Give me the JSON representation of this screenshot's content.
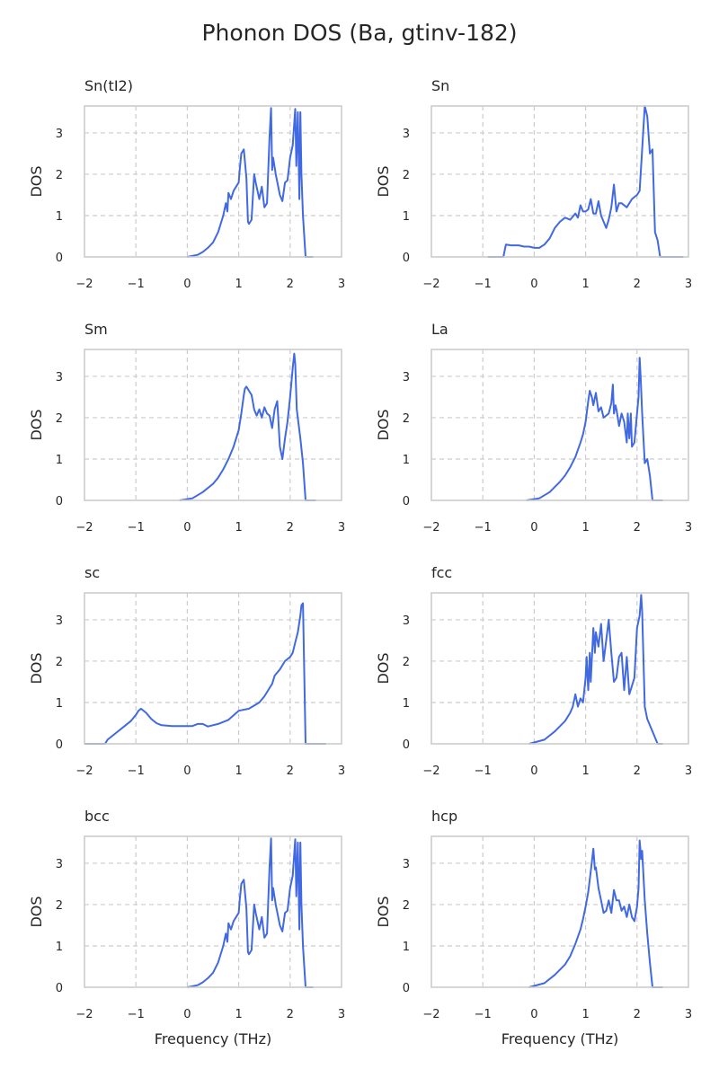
{
  "chart_data": {
    "type": "line",
    "title": "Phonon DOS (Ba, gtinv-182)",
    "xlabel": "Frequency (THz)",
    "ylabel": "DOS",
    "xlim": [
      -2,
      3
    ],
    "ylim": [
      0,
      3.65
    ],
    "xticks": [
      -2,
      -1,
      0,
      1,
      2,
      3
    ],
    "xtick_labels": [
      "−2",
      "−1",
      "0",
      "1",
      "2",
      "3"
    ],
    "yticks": [
      0,
      1,
      2,
      3
    ],
    "ytick_labels": [
      "0",
      "1",
      "2",
      "3"
    ],
    "grid": true,
    "line_color": "#4169e1",
    "panels": [
      {
        "title": "Sn(tI2)",
        "x": [
          0.0,
          0.2,
          0.3,
          0.4,
          0.5,
          0.6,
          0.7,
          0.75,
          0.78,
          0.8,
          0.85,
          0.9,
          0.95,
          1.0,
          1.02,
          1.05,
          1.1,
          1.15,
          1.18,
          1.2,
          1.25,
          1.3,
          1.33,
          1.4,
          1.45,
          1.5,
          1.55,
          1.6,
          1.63,
          1.65,
          1.67,
          1.72,
          1.8,
          1.85,
          1.9,
          1.95,
          2.0,
          2.05,
          2.1,
          2.12,
          2.15,
          2.18,
          2.2,
          2.22,
          2.25,
          2.3,
          2.35,
          2.45
        ],
        "y": [
          0.0,
          0.05,
          0.12,
          0.22,
          0.35,
          0.6,
          1.0,
          1.3,
          1.1,
          1.55,
          1.4,
          1.6,
          1.7,
          1.8,
          2.1,
          2.5,
          2.6,
          1.9,
          0.85,
          0.8,
          0.9,
          2.0,
          1.8,
          1.4,
          1.7,
          1.2,
          1.3,
          2.9,
          3.6,
          2.1,
          2.4,
          2.0,
          1.5,
          1.35,
          1.8,
          1.85,
          2.4,
          2.7,
          3.58,
          2.2,
          3.5,
          1.4,
          3.5,
          2.0,
          1.0,
          0.0,
          0.0,
          0.0
        ]
      },
      {
        "title": "Sn",
        "x": [
          -0.9,
          -0.6,
          -0.55,
          -0.45,
          -0.3,
          -0.2,
          -0.1,
          0.0,
          0.1,
          0.2,
          0.3,
          0.4,
          0.5,
          0.6,
          0.7,
          0.8,
          0.85,
          0.9,
          0.95,
          1.0,
          1.05,
          1.1,
          1.15,
          1.2,
          1.25,
          1.3,
          1.4,
          1.45,
          1.5,
          1.55,
          1.6,
          1.65,
          1.7,
          1.8,
          1.9,
          2.0,
          2.05,
          2.1,
          2.15,
          2.2,
          2.25,
          2.3,
          2.35,
          2.4,
          2.45,
          2.5,
          2.55,
          2.6,
          2.9
        ],
        "y": [
          0.0,
          0.0,
          0.3,
          0.28,
          0.28,
          0.25,
          0.25,
          0.22,
          0.22,
          0.3,
          0.45,
          0.7,
          0.85,
          0.95,
          0.9,
          1.05,
          0.95,
          1.25,
          1.1,
          1.1,
          1.15,
          1.4,
          1.05,
          1.05,
          1.35,
          1.0,
          0.7,
          0.9,
          1.2,
          1.75,
          1.1,
          1.3,
          1.3,
          1.2,
          1.4,
          1.5,
          1.6,
          2.6,
          3.65,
          3.4,
          2.5,
          2.6,
          0.6,
          0.4,
          0.0,
          0.0,
          0.0,
          0.0,
          0.0
        ]
      },
      {
        "title": "Sm",
        "x": [
          -0.15,
          0.1,
          0.3,
          0.5,
          0.6,
          0.7,
          0.8,
          0.9,
          1.0,
          1.05,
          1.1,
          1.12,
          1.15,
          1.2,
          1.25,
          1.3,
          1.35,
          1.4,
          1.45,
          1.5,
          1.55,
          1.6,
          1.65,
          1.7,
          1.75,
          1.8,
          1.85,
          1.9,
          1.95,
          2.0,
          2.05,
          2.08,
          2.1,
          2.13,
          2.2,
          2.25,
          2.3,
          2.35,
          2.5
        ],
        "y": [
          0.0,
          0.05,
          0.2,
          0.4,
          0.55,
          0.75,
          1.0,
          1.3,
          1.7,
          2.1,
          2.55,
          2.7,
          2.75,
          2.65,
          2.55,
          2.2,
          2.05,
          2.2,
          2.0,
          2.25,
          2.1,
          2.05,
          1.75,
          2.2,
          2.4,
          1.3,
          1.0,
          1.5,
          1.9,
          2.5,
          3.2,
          3.55,
          3.3,
          2.2,
          1.5,
          0.9,
          0.0,
          0.0,
          0.0
        ]
      },
      {
        "title": "La",
        "x": [
          -0.15,
          0.1,
          0.3,
          0.5,
          0.6,
          0.7,
          0.8,
          0.9,
          0.95,
          1.0,
          1.05,
          1.08,
          1.12,
          1.15,
          1.2,
          1.25,
          1.3,
          1.35,
          1.4,
          1.45,
          1.5,
          1.53,
          1.55,
          1.58,
          1.6,
          1.65,
          1.7,
          1.75,
          1.8,
          1.82,
          1.85,
          1.88,
          1.9,
          1.95,
          2.0,
          2.03,
          2.05,
          2.07,
          2.1,
          2.15,
          2.2,
          2.25,
          2.3,
          2.5
        ],
        "y": [
          0.0,
          0.05,
          0.2,
          0.45,
          0.6,
          0.8,
          1.05,
          1.4,
          1.6,
          1.9,
          2.4,
          2.65,
          2.5,
          2.3,
          2.6,
          2.15,
          2.25,
          2.0,
          2.05,
          2.1,
          2.35,
          2.8,
          2.1,
          2.3,
          2.2,
          1.8,
          2.1,
          1.9,
          1.4,
          2.1,
          1.5,
          2.1,
          1.3,
          1.4,
          2.1,
          2.5,
          3.45,
          3.0,
          2.1,
          0.9,
          1.0,
          0.6,
          0.0,
          0.0
        ]
      },
      {
        "title": "sc",
        "x": [
          -2.0,
          -1.6,
          -1.55,
          -1.4,
          -1.2,
          -1.1,
          -1.0,
          -0.95,
          -0.9,
          -0.8,
          -0.7,
          -0.6,
          -0.5,
          -0.3,
          -0.1,
          0.0,
          0.1,
          0.2,
          0.3,
          0.4,
          0.6,
          0.8,
          1.0,
          1.2,
          1.4,
          1.5,
          1.6,
          1.65,
          1.7,
          1.8,
          1.9,
          2.0,
          2.05,
          2.1,
          2.15,
          2.2,
          2.22,
          2.25,
          2.3,
          2.7
        ],
        "y": [
          0.0,
          0.0,
          0.1,
          0.25,
          0.45,
          0.55,
          0.7,
          0.8,
          0.85,
          0.75,
          0.6,
          0.5,
          0.45,
          0.43,
          0.43,
          0.43,
          0.43,
          0.48,
          0.48,
          0.42,
          0.48,
          0.58,
          0.8,
          0.85,
          1.0,
          1.15,
          1.35,
          1.45,
          1.65,
          1.8,
          2.0,
          2.1,
          2.2,
          2.45,
          2.7,
          3.1,
          3.35,
          3.4,
          0.0,
          0.0
        ]
      },
      {
        "title": "fcc",
        "x": [
          -0.1,
          0.2,
          0.4,
          0.6,
          0.7,
          0.75,
          0.8,
          0.85,
          0.9,
          0.95,
          1.0,
          1.02,
          1.05,
          1.08,
          1.1,
          1.15,
          1.18,
          1.2,
          1.25,
          1.3,
          1.35,
          1.4,
          1.45,
          1.5,
          1.55,
          1.6,
          1.65,
          1.7,
          1.75,
          1.8,
          1.85,
          1.9,
          1.95,
          2.0,
          2.05,
          2.08,
          2.1,
          2.15,
          2.2,
          2.3,
          2.4,
          2.5
        ],
        "y": [
          0.0,
          0.1,
          0.3,
          0.55,
          0.75,
          0.9,
          1.2,
          0.9,
          1.1,
          1.0,
          1.6,
          2.1,
          1.3,
          2.2,
          1.5,
          2.8,
          2.2,
          2.7,
          2.35,
          2.9,
          2.0,
          2.5,
          3.0,
          2.2,
          1.5,
          1.6,
          2.1,
          2.2,
          1.3,
          2.1,
          1.2,
          1.4,
          1.6,
          2.8,
          3.1,
          3.6,
          3.2,
          0.9,
          0.6,
          0.3,
          0.0,
          0.0
        ]
      },
      {
        "title": "bcc",
        "x": [
          0.0,
          0.2,
          0.3,
          0.4,
          0.5,
          0.6,
          0.7,
          0.75,
          0.78,
          0.8,
          0.85,
          0.9,
          0.95,
          1.0,
          1.02,
          1.05,
          1.1,
          1.15,
          1.18,
          1.2,
          1.25,
          1.3,
          1.33,
          1.4,
          1.45,
          1.5,
          1.55,
          1.6,
          1.63,
          1.65,
          1.67,
          1.72,
          1.8,
          1.85,
          1.9,
          1.95,
          2.0,
          2.05,
          2.1,
          2.12,
          2.15,
          2.18,
          2.2,
          2.22,
          2.25,
          2.3,
          2.35,
          2.45
        ],
        "y": [
          0.0,
          0.05,
          0.12,
          0.22,
          0.35,
          0.6,
          1.0,
          1.3,
          1.1,
          1.55,
          1.4,
          1.6,
          1.7,
          1.8,
          2.1,
          2.5,
          2.6,
          1.9,
          0.85,
          0.8,
          0.9,
          2.0,
          1.8,
          1.4,
          1.7,
          1.2,
          1.3,
          2.9,
          3.6,
          2.1,
          2.4,
          2.0,
          1.5,
          1.35,
          1.8,
          1.85,
          2.4,
          2.7,
          3.58,
          2.2,
          3.5,
          1.4,
          3.5,
          2.0,
          1.0,
          0.0,
          0.0,
          0.0
        ]
      },
      {
        "title": "hcp",
        "x": [
          -0.1,
          0.2,
          0.4,
          0.6,
          0.7,
          0.8,
          0.9,
          0.95,
          1.0,
          1.05,
          1.1,
          1.15,
          1.18,
          1.2,
          1.25,
          1.3,
          1.35,
          1.4,
          1.45,
          1.5,
          1.55,
          1.6,
          1.65,
          1.7,
          1.75,
          1.8,
          1.85,
          1.9,
          1.95,
          2.0,
          2.03,
          2.05,
          2.08,
          2.1,
          2.15,
          2.2,
          2.25,
          2.3,
          2.5
        ],
        "y": [
          0.0,
          0.1,
          0.3,
          0.55,
          0.75,
          1.05,
          1.4,
          1.65,
          1.95,
          2.3,
          2.8,
          3.35,
          2.85,
          2.9,
          2.4,
          2.1,
          1.8,
          1.85,
          2.1,
          1.8,
          2.35,
          2.1,
          2.1,
          1.85,
          1.95,
          1.7,
          2.0,
          1.7,
          1.6,
          1.95,
          2.4,
          3.55,
          3.1,
          3.3,
          2.1,
          1.3,
          0.6,
          0.0,
          0.0
        ]
      }
    ]
  }
}
